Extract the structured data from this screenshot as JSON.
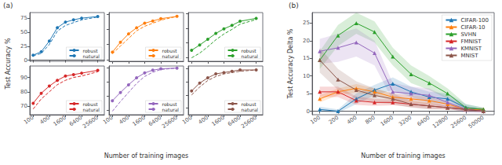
{
  "chart_data": [
    {
      "type": "line",
      "title": "(a)",
      "xlabel": "Number of training images",
      "ylabel": "Test Accuracy %",
      "log": "x",
      "x": [
        100,
        200,
        400,
        800,
        1600,
        3200,
        6400,
        25600
      ],
      "xlim": [
        75,
        45000
      ],
      "xticks": [
        100,
        400,
        1600,
        6400,
        25600
      ],
      "ylim": [
        -2,
        85
      ],
      "yticks": [
        0,
        25,
        50,
        75
      ],
      "grid": false,
      "legend": "lower right",
      "tick_labels": "y",
      "series": [
        {
          "name": "robust",
          "color": "#1f77b4",
          "values": [
            9,
            15,
            34,
            58,
            68,
            72,
            75,
            78
          ],
          "marker": "circle",
          "line_style": "solid"
        },
        {
          "name": "natural",
          "color": "#1f77b4",
          "values": [
            8,
            12,
            28,
            52,
            62,
            67,
            72,
            77
          ],
          "line_style": "dashed"
        }
      ]
    },
    {
      "type": "line",
      "log": "x",
      "x": [
        100,
        200,
        400,
        800,
        1600,
        3200,
        6400,
        25600
      ],
      "xlim": [
        75,
        45000
      ],
      "xticks": [
        100,
        400,
        1600,
        6400,
        25600
      ],
      "ylim": [
        38,
        102
      ],
      "yticks": [
        40,
        60,
        80,
        100
      ],
      "grid": false,
      "legend": "lower right",
      "tick_labels": false,
      "series": [
        {
          "name": "robust",
          "color": "#ff7f0e",
          "values": [
            50,
            63,
            74,
            82,
            88,
            91,
            94,
            97
          ],
          "marker": "circle",
          "line_style": "solid"
        },
        {
          "name": "natural",
          "color": "#ff7f0e",
          "values": [
            48,
            58,
            68,
            78,
            84,
            88,
            92,
            97
          ],
          "line_style": "dashed"
        }
      ]
    },
    {
      "type": "line",
      "log": "x",
      "x": [
        100,
        200,
        400,
        800,
        1600,
        3200,
        6400,
        25600
      ],
      "xlim": [
        75,
        45000
      ],
      "xticks": [
        100,
        400,
        1600,
        6400,
        25600
      ],
      "ylim": [
        18,
        102
      ],
      "yticks": [
        25,
        50,
        75,
        100
      ],
      "grid": false,
      "legend": "lower right",
      "tick_labels": false,
      "series": [
        {
          "name": "robust",
          "color": "#2ca02c",
          "values": [
            37,
            46,
            56,
            66,
            74,
            80,
            87,
            92
          ],
          "marker": "circle",
          "line_style": "solid"
        },
        {
          "name": "natural",
          "color": "#2ca02c",
          "values": [
            24,
            32,
            43,
            55,
            65,
            73,
            82,
            90
          ],
          "line_style": "dashed"
        }
      ]
    },
    {
      "type": "line",
      "log": "x",
      "x": [
        100,
        200,
        400,
        800,
        1600,
        3200,
        6400,
        25600
      ],
      "xlim": [
        75,
        45000
      ],
      "xticks": [
        100,
        400,
        1600,
        6400,
        25600
      ],
      "ylim": [
        64,
        98
      ],
      "yticks": [
        70,
        80,
        90
      ],
      "grid": false,
      "legend": "lower right",
      "series": [
        {
          "name": "robust",
          "color": "#d62728",
          "values": [
            72,
            79,
            84,
            88,
            91,
            92,
            93,
            95
          ],
          "marker": "circle",
          "line_style": "solid"
        },
        {
          "name": "natural",
          "color": "#d62728",
          "values": [
            68,
            75,
            80,
            85,
            88,
            90,
            91,
            94
          ],
          "line_style": "dashed"
        }
      ]
    },
    {
      "type": "line",
      "log": "x",
      "x": [
        100,
        200,
        400,
        800,
        1600,
        3200,
        6400,
        25600
      ],
      "xlim": [
        75,
        45000
      ],
      "xticks": [
        100,
        400,
        1600,
        6400,
        25600
      ],
      "ylim": [
        33,
        103
      ],
      "yticks": [
        40,
        60,
        80,
        100
      ],
      "grid": false,
      "legend": "lower right",
      "tick_labels": "x",
      "series": [
        {
          "name": "robust",
          "color": "#9467bd",
          "values": [
            53,
            65,
            76,
            86,
            93,
            97,
            99,
            100
          ],
          "marker": "circle",
          "line_style": "solid"
        },
        {
          "name": "natural",
          "color": "#9467bd",
          "values": [
            38,
            52,
            65,
            78,
            88,
            94,
            98,
            100
          ],
          "line_style": "dashed"
        }
      ]
    },
    {
      "type": "line",
      "log": "x",
      "x": [
        100,
        200,
        400,
        800,
        1600,
        3200,
        6400,
        25600
      ],
      "xlim": [
        75,
        45000
      ],
      "xticks": [
        100,
        400,
        1600,
        6400,
        25600
      ],
      "ylim": [
        65,
        102
      ],
      "yticks": [
        70,
        80,
        90,
        100
      ],
      "grid": false,
      "legend": "lower right",
      "tick_labels": "x",
      "series": [
        {
          "name": "robust",
          "color": "#8c564b",
          "values": [
            83,
            89,
            93,
            96,
            97,
            98,
            99,
            99
          ],
          "marker": "circle",
          "line_style": "solid"
        },
        {
          "name": "natural",
          "color": "#8c564b",
          "values": [
            80,
            86,
            91,
            94,
            96,
            97,
            98,
            99
          ],
          "line_style": "dashed"
        }
      ]
    },
    {
      "type": "line",
      "title": "(b)",
      "xlabel": "Number of training images",
      "ylabel": "Test Accuracy Delta %",
      "log": "x",
      "x": [
        100,
        200,
        400,
        800,
        1600,
        3200,
        6400,
        12800,
        25600,
        50000
      ],
      "xlim": [
        75,
        75000
      ],
      "xticks": [
        100,
        200,
        400,
        800,
        1600,
        3200,
        6400,
        12800,
        25600,
        50000
      ],
      "ylim": [
        -1,
        28
      ],
      "yticks": [
        0,
        5,
        10,
        15,
        20,
        25
      ],
      "grid": false,
      "legend": "upper right",
      "series": [
        {
          "name": "CIFAR-100",
          "color": "#1f77b4",
          "marker": "triangle",
          "line_style": "solid",
          "values": [
            0.5,
            0.0,
            3.5,
            6.0,
            7.8,
            5.5,
            4.0,
            3.5,
            1.0,
            0.5
          ],
          "std": [
            0.8,
            0.5,
            1.5,
            1.5,
            1.8,
            1.5,
            1.5,
            1.5,
            1.0,
            0.5
          ]
        },
        {
          "name": "CIFAR-10",
          "color": "#ff7f0e",
          "marker": "triangle",
          "line_style": "solid",
          "values": [
            3.5,
            5.5,
            6.5,
            5.5,
            4.0,
            3.5,
            3.0,
            2.0,
            0.5,
            0.5
          ],
          "std": [
            1.0,
            1.0,
            1.2,
            1.0,
            1.0,
            1.0,
            1.0,
            0.5,
            0.5,
            0.5
          ]
        },
        {
          "name": "SVHN",
          "color": "#2ca02c",
          "marker": "triangle",
          "line_style": "solid",
          "values": [
            14.5,
            21.5,
            25.0,
            22.5,
            15.5,
            10.5,
            8.0,
            5.0,
            1.0,
            0.5
          ],
          "std": [
            2.5,
            3.0,
            3.0,
            3.0,
            2.5,
            2.5,
            2.0,
            1.5,
            1.0,
            0.5
          ]
        },
        {
          "name": "FMNIST",
          "color": "#d62728",
          "marker": "triangle",
          "line_style": "solid",
          "values": [
            5.5,
            5.5,
            3.0,
            2.5,
            2.5,
            2.0,
            1.5,
            1.0,
            0.5,
            0.0
          ],
          "std": [
            1.5,
            1.5,
            1.2,
            1.0,
            0.8,
            0.8,
            0.8,
            0.5,
            0.5,
            0.3
          ]
        },
        {
          "name": "KMNIST",
          "color": "#9467bd",
          "marker": "triangle",
          "line_style": "solid",
          "values": [
            17.0,
            18.0,
            19.5,
            16.5,
            5.5,
            5.0,
            4.5,
            2.5,
            0.5,
            0.0
          ],
          "std": [
            3.5,
            4.0,
            4.0,
            3.5,
            2.5,
            2.0,
            2.0,
            1.5,
            1.0,
            0.5
          ]
        },
        {
          "name": "MNIST",
          "color": "#8c564b",
          "marker": "triangle",
          "line_style": "solid",
          "values": [
            14.5,
            9.0,
            6.0,
            4.5,
            3.5,
            2.0,
            1.5,
            1.0,
            0.5,
            0.0
          ],
          "std": [
            3.5,
            3.0,
            2.5,
            2.0,
            1.5,
            1.0,
            1.0,
            0.5,
            0.5,
            0.3
          ]
        }
      ]
    }
  ]
}
